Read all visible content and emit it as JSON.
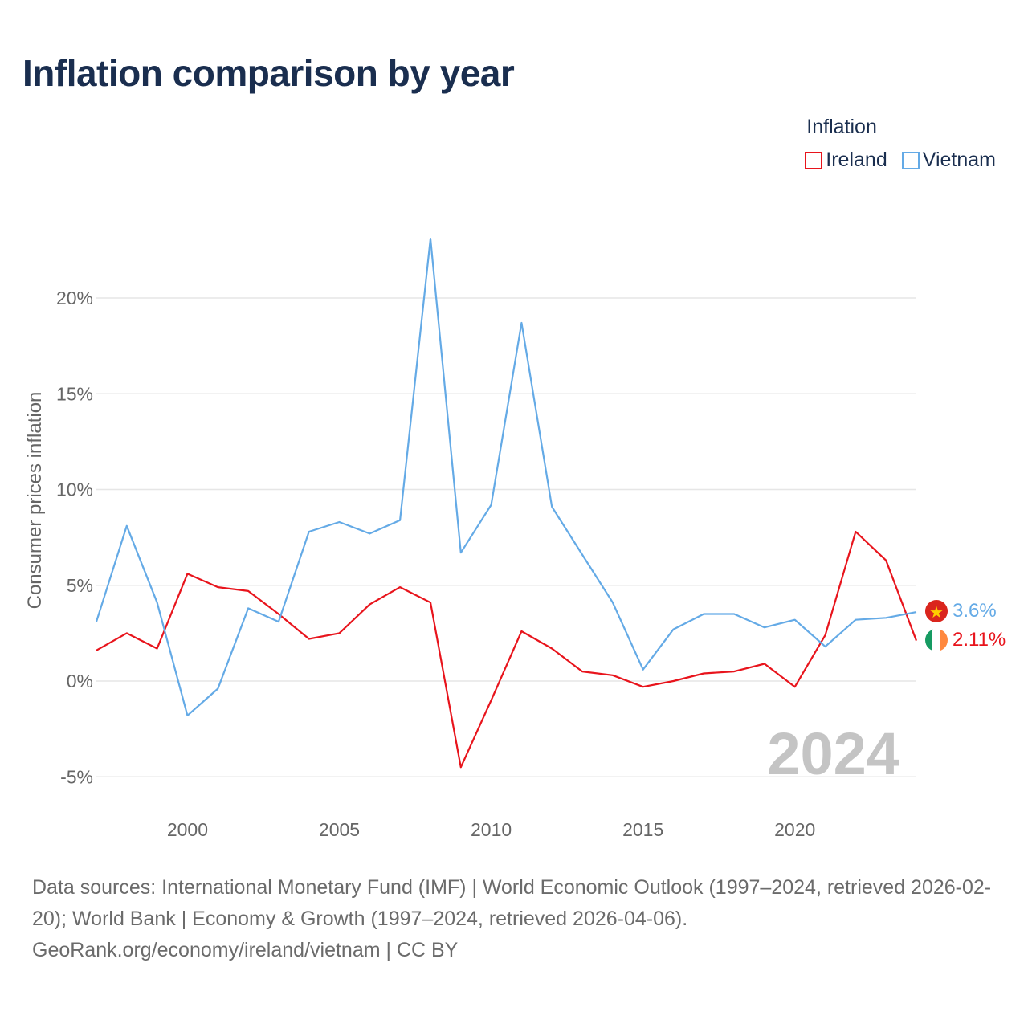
{
  "title": "Inflation comparison by year",
  "legend": {
    "title": "Inflation",
    "items": [
      {
        "label": "Ireland",
        "color": "#e8141c"
      },
      {
        "label": "Vietnam",
        "color": "#64aae6"
      }
    ]
  },
  "chart_data": {
    "type": "line",
    "title": "Inflation comparison by year",
    "ylabel": "Consumer prices inflation",
    "xlabel": "",
    "xlim": [
      1997,
      2024
    ],
    "ylim": [
      -5,
      20
    ],
    "x": [
      1997,
      1998,
      1999,
      2000,
      2001,
      2002,
      2003,
      2004,
      2005,
      2006,
      2007,
      2008,
      2009,
      2010,
      2011,
      2012,
      2013,
      2014,
      2015,
      2016,
      2017,
      2018,
      2019,
      2020,
      2021,
      2022,
      2023,
      2024
    ],
    "x_ticks": [
      "2000",
      "2005",
      "2010",
      "2015",
      "2020"
    ],
    "x_tick_values": [
      2000,
      2005,
      2010,
      2015,
      2020
    ],
    "y_ticks": [
      "-5%",
      "0%",
      "5%",
      "10%",
      "15%",
      "20%"
    ],
    "y_tick_values": [
      -5,
      0,
      5,
      10,
      15,
      20
    ],
    "grid": true,
    "series": [
      {
        "name": "Ireland",
        "color": "#e8141c",
        "values": [
          1.6,
          2.5,
          1.7,
          5.6,
          4.9,
          4.7,
          3.5,
          2.2,
          2.5,
          4.0,
          4.9,
          4.1,
          -4.5,
          -1.0,
          2.6,
          1.7,
          0.5,
          0.3,
          -0.3,
          0.0,
          0.4,
          0.5,
          0.9,
          -0.3,
          2.4,
          7.8,
          6.3,
          2.11
        ],
        "end_label": "2.11%"
      },
      {
        "name": "Vietnam",
        "color": "#64aae6",
        "values": [
          3.1,
          8.1,
          4.1,
          -1.8,
          -0.4,
          3.8,
          3.1,
          7.8,
          8.3,
          7.7,
          8.4,
          23.1,
          6.7,
          9.2,
          18.7,
          9.1,
          6.6,
          4.1,
          0.6,
          2.7,
          3.5,
          3.5,
          2.8,
          3.2,
          1.8,
          3.2,
          3.3,
          3.6
        ],
        "end_label": "3.6%"
      }
    ],
    "annotation": "2024"
  },
  "footer": {
    "sources": "Data sources: International Monetary Fund (IMF) | World Economic Outlook (1997–2024, retrieved 2026-02-20); World Bank | Economy & Growth (1997–2024, retrieved 2026-04-06).",
    "credit": "GeoRank.org/economy/ireland/vietnam | CC BY"
  },
  "icons": {
    "vietnam_flag": "vietnam-flag-icon",
    "ireland_flag": "ireland-flag-icon"
  }
}
